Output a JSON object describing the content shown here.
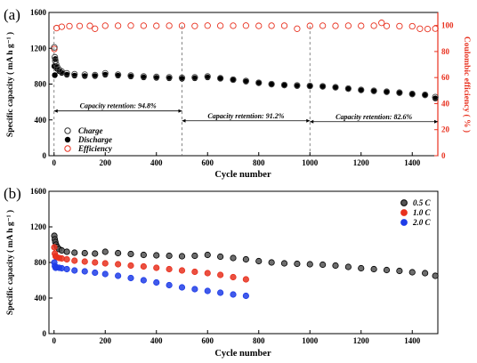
{
  "chart_data": [
    {
      "panel": "(a)",
      "type": "scatter",
      "xlabel": "Cycle number",
      "ylabel": "Specific capacity ( mA h g⁻¹ )",
      "y2label": "Coulombic efficiency ( % )",
      "xlim": [
        -20,
        1500
      ],
      "ylim": [
        0,
        1600
      ],
      "y2lim": [
        0,
        110
      ],
      "xticks": [
        "0",
        "200",
        "400",
        "600",
        "800",
        "1000",
        "1200",
        "1400"
      ],
      "yticks": [
        "0",
        "400",
        "800",
        "1200",
        "1600"
      ],
      "y2ticks": [
        "0",
        "20",
        "40",
        "60",
        "80",
        "100"
      ],
      "legend_position": "bottom-left",
      "colors": {
        "axis_right": "#e8311f",
        "charge": "#333333",
        "discharge": "#000000",
        "efficiency": "#e8311f"
      },
      "series": [
        {
          "name": "Charge",
          "marker": "open-circle",
          "axis": "left",
          "x": [
            1,
            3,
            5,
            8,
            12,
            20,
            30,
            50,
            80,
            120,
            160,
            200,
            250,
            300,
            350,
            400,
            450,
            500,
            550,
            600,
            650,
            700,
            750,
            800,
            850,
            900,
            950,
            1000,
            1050,
            1100,
            1150,
            1200,
            1250,
            1300,
            1350,
            1400,
            1450,
            1490
          ],
          "y": [
            1210,
            1100,
            1060,
            1020,
            990,
            960,
            940,
            920,
            910,
            905,
            900,
            920,
            905,
            895,
            885,
            880,
            875,
            870,
            875,
            885,
            865,
            850,
            835,
            815,
            800,
            790,
            785,
            780,
            775,
            765,
            750,
            735,
            725,
            715,
            705,
            690,
            680,
            655
          ]
        },
        {
          "name": "Discharge",
          "marker": "filled-circle",
          "axis": "left",
          "x": [
            1,
            3,
            5,
            8,
            12,
            20,
            30,
            50,
            80,
            120,
            160,
            200,
            250,
            300,
            350,
            400,
            450,
            500,
            550,
            600,
            650,
            700,
            750,
            800,
            850,
            900,
            950,
            1000,
            1050,
            1100,
            1150,
            1200,
            1250,
            1300,
            1350,
            1400,
            1450,
            1490
          ],
          "y": [
            1000,
            900,
            1080,
            1000,
            970,
            945,
            925,
            905,
            895,
            890,
            890,
            905,
            895,
            885,
            875,
            870,
            865,
            860,
            865,
            875,
            860,
            845,
            828,
            810,
            795,
            785,
            778,
            775,
            770,
            760,
            745,
            730,
            720,
            710,
            700,
            685,
            675,
            640
          ]
        },
        {
          "name": "Efficiency",
          "marker": "open-circle",
          "axis": "right",
          "x": [
            1,
            10,
            30,
            60,
            100,
            140,
            160,
            200,
            250,
            300,
            350,
            400,
            450,
            500,
            550,
            600,
            650,
            700,
            750,
            800,
            850,
            900,
            950,
            1000,
            1050,
            1100,
            1150,
            1200,
            1250,
            1280,
            1300,
            1350,
            1400,
            1430,
            1460,
            1490
          ],
          "y": [
            82,
            98,
            99,
            99.5,
            99.6,
            99.7,
            97.5,
            99.8,
            99.8,
            99.9,
            99.8,
            99.7,
            99.8,
            99.8,
            99.6,
            99.9,
            99.8,
            99.8,
            99.9,
            99.7,
            99.8,
            99.8,
            97.5,
            99.7,
            99.8,
            99.7,
            99.8,
            99.7,
            99.8,
            102,
            99.6,
            99.5,
            99.4,
            97.5,
            97.3,
            97.6
          ]
        }
      ],
      "dividers": [
        500,
        1000,
        1500
      ],
      "annotations": [
        {
          "text": "Capacity retention: 94.8%",
          "x_from": 0,
          "x_to": 500,
          "y": 500
        },
        {
          "text": "Capacity retention: 91.2%",
          "x_from": 500,
          "x_to": 1000,
          "y": 390
        },
        {
          "text": "Capacity retention: 82.6%",
          "x_from": 1000,
          "x_to": 1500,
          "y": 380
        }
      ]
    },
    {
      "panel": "(b)",
      "type": "scatter",
      "xlabel": "Cycle number",
      "ylabel": "Specific capacity ( mA h g⁻¹ )",
      "xlim": [
        -20,
        1500
      ],
      "ylim": [
        0,
        1600
      ],
      "xticks": [
        "0",
        "200",
        "400",
        "600",
        "800",
        "1000",
        "1200",
        "1400"
      ],
      "yticks": [
        "0",
        "400",
        "800",
        "1200",
        "1600"
      ],
      "legend_position": "top-right",
      "series": [
        {
          "name": "0.5 C",
          "color": "#000000",
          "fill": "#555555",
          "x": [
            1,
            3,
            5,
            8,
            12,
            20,
            30,
            50,
            80,
            120,
            160,
            200,
            250,
            300,
            350,
            400,
            450,
            500,
            550,
            600,
            650,
            700,
            750,
            800,
            850,
            900,
            950,
            1000,
            1050,
            1100,
            1150,
            1200,
            1250,
            1300,
            1350,
            1400,
            1450,
            1490
          ],
          "y": [
            1100,
            1060,
            1030,
            1000,
            975,
            950,
            935,
            920,
            910,
            905,
            900,
            920,
            905,
            895,
            885,
            880,
            875,
            870,
            875,
            885,
            865,
            850,
            835,
            815,
            800,
            790,
            785,
            780,
            775,
            765,
            750,
            735,
            725,
            715,
            705,
            690,
            680,
            650
          ]
        },
        {
          "name": "1.0 C",
          "color": "#e8311f",
          "fill": "#e8311f",
          "x": [
            1,
            3,
            6,
            10,
            20,
            30,
            50,
            80,
            120,
            160,
            200,
            250,
            300,
            350,
            400,
            450,
            500,
            550,
            600,
            650,
            700,
            750
          ],
          "y": [
            970,
            900,
            870,
            860,
            850,
            845,
            835,
            820,
            810,
            800,
            790,
            780,
            765,
            755,
            740,
            725,
            710,
            695,
            680,
            660,
            635,
            610
          ]
        },
        {
          "name": "2.0 C",
          "color": "#1f3de8",
          "fill": "#1f3de8",
          "x": [
            1,
            3,
            6,
            10,
            20,
            30,
            50,
            80,
            120,
            160,
            200,
            250,
            300,
            350,
            400,
            450,
            500,
            550,
            600,
            650,
            700,
            750
          ],
          "y": [
            800,
            760,
            740,
            745,
            740,
            735,
            725,
            710,
            700,
            685,
            670,
            650,
            625,
            600,
            575,
            545,
            520,
            500,
            480,
            460,
            440,
            425
          ]
        }
      ]
    }
  ]
}
